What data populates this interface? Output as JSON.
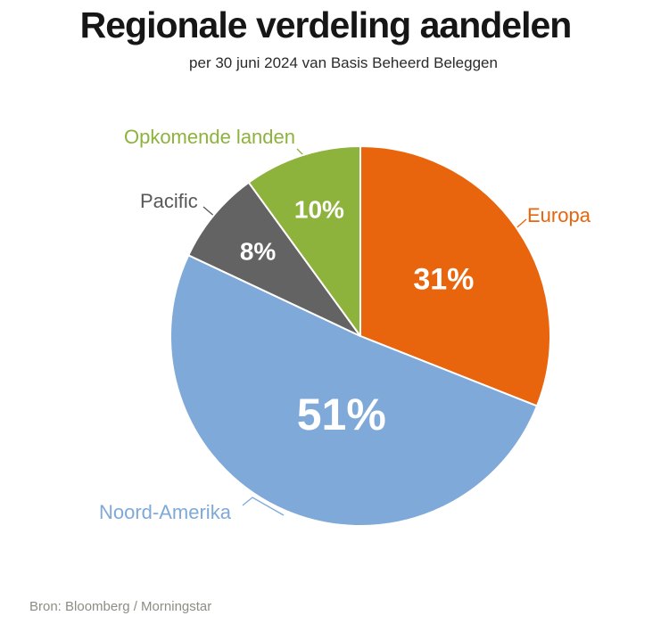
{
  "header": {
    "title": "Regionale verdeling aandelen",
    "subtitle": "per 30 juni 2024 van Basis Beheerd Beleggen"
  },
  "chart_data": {
    "type": "pie",
    "title": "Regionale verdeling aandelen",
    "subtitle": "per 30 juni 2024 van Basis Beheerd Beleggen",
    "unit": "%",
    "categories": [
      "Europa",
      "Noord-Amerika",
      "Pacific",
      "Opkomende landen"
    ],
    "values": [
      31,
      51,
      8,
      10
    ],
    "value_labels": [
      "31%",
      "51%",
      "8%",
      "10%"
    ],
    "colors": [
      "#E8650D",
      "#7FA9D9",
      "#636363",
      "#8DB33C"
    ],
    "label_colors": [
      "#E8650D",
      "#7FA9D9",
      "#58585A",
      "#8DB33C"
    ],
    "slice_label_color": "#FFFFFF",
    "start_angle_deg": 0,
    "direction": "clockwise",
    "legend_position": "outside-callouts",
    "grid": false
  },
  "footer": {
    "source": "Bron: Bloomberg / Morningstar"
  }
}
